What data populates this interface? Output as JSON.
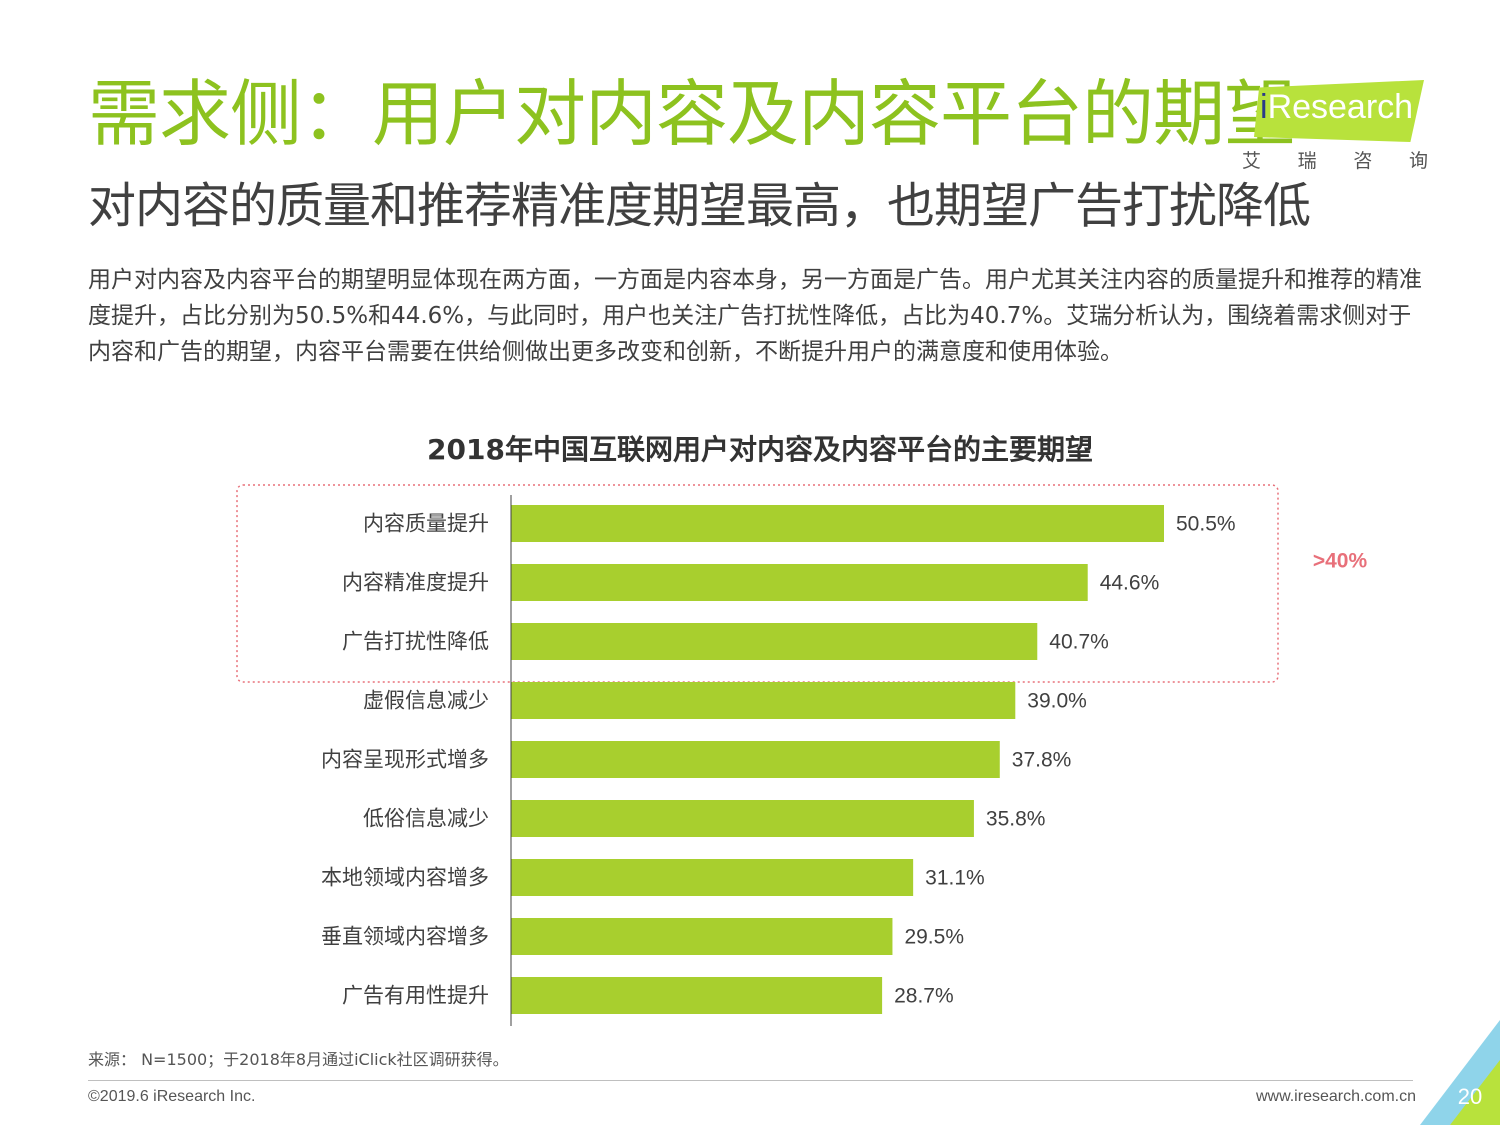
{
  "header": {
    "title": "需求侧：用户对内容及内容平台的期望",
    "subtitle": "对内容的质量和推荐精准度期望最高，也期望广告打扰降低"
  },
  "logo": {
    "i": "i",
    "brand": "Research",
    "cn": [
      "艾",
      "瑞",
      "咨",
      "询"
    ]
  },
  "description": "用户对内容及内容平台的期望明显体现在两方面，一方面是内容本身，另一方面是广告。用户尤其关注内容的质量提升和推荐的精准度提升，占比分别为50.5%和44.6%，与此同时，用户也关注广告打扰性降低，占比为40.7%。艾瑞分析认为，围绕着需求侧对于内容和广告的期望，内容平台需要在供给侧做出更多改变和创新，不断提升用户的满意度和使用体验。",
  "chart_data": {
    "type": "bar",
    "orientation": "horizontal",
    "title": "2018年中国互联网用户对内容及内容平台的主要期望",
    "categories": [
      "内容质量提升",
      "内容精准度提升",
      "广告打扰性降低",
      "虚假信息减少",
      "内容呈现形式增多",
      "低俗信息减少",
      "本地领域内容增多",
      "垂直领域内容增多",
      "广告有用性提升"
    ],
    "values": [
      50.5,
      44.6,
      40.7,
      39.0,
      37.8,
      35.8,
      31.1,
      29.5,
      28.7
    ],
    "value_labels": [
      "50.5%",
      "44.6%",
      "40.7%",
      "39.0%",
      "37.8%",
      "35.8%",
      "31.1%",
      "29.5%",
      "28.7%"
    ],
    "unit": "%",
    "bar_color": "#a8cf2e",
    "highlight": {
      "label": ">40%",
      "count": 3,
      "color": "#e8707a"
    }
  },
  "footer": {
    "source": "来源： N=1500；于2018年8月通过iClick社区调研获得。",
    "copyright": "©2019.6 iResearch Inc.",
    "website": "www.iresearch.com.cn",
    "page": "20"
  }
}
